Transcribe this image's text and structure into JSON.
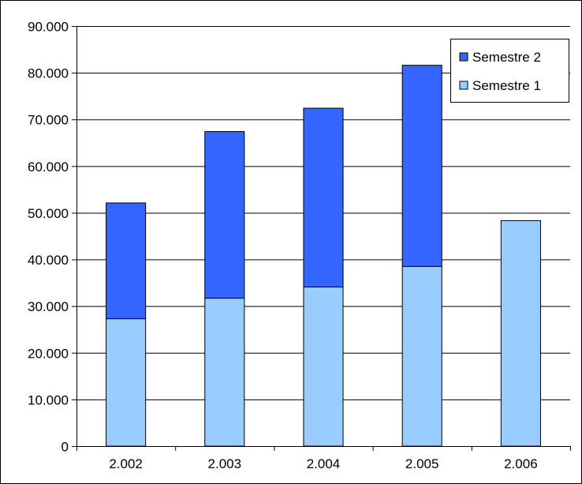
{
  "chart_data": {
    "type": "bar",
    "stacked": true,
    "categories": [
      "2.002",
      "2.003",
      "2.004",
      "2.005",
      "2.006"
    ],
    "series": [
      {
        "name": "Semestre 1",
        "color": "#99ccff",
        "values": [
          27300,
          31700,
          34100,
          38500,
          48300
        ]
      },
      {
        "name": "Semestre 2",
        "color": "#3366ff",
        "values": [
          24800,
          35700,
          38300,
          43100,
          0
        ]
      }
    ],
    "ylim": [
      0,
      90000
    ],
    "y_ticks": [
      0,
      10000,
      20000,
      30000,
      40000,
      50000,
      60000,
      70000,
      80000,
      90000
    ],
    "y_tick_labels": [
      "0",
      "10.000",
      "20.000",
      "30.000",
      "40.000",
      "50.000",
      "60.000",
      "70.000",
      "80.000",
      "90.000"
    ],
    "grid": true,
    "legend_position": "top-right",
    "legend_order": [
      "Semestre 2",
      "Semestre 1"
    ]
  }
}
